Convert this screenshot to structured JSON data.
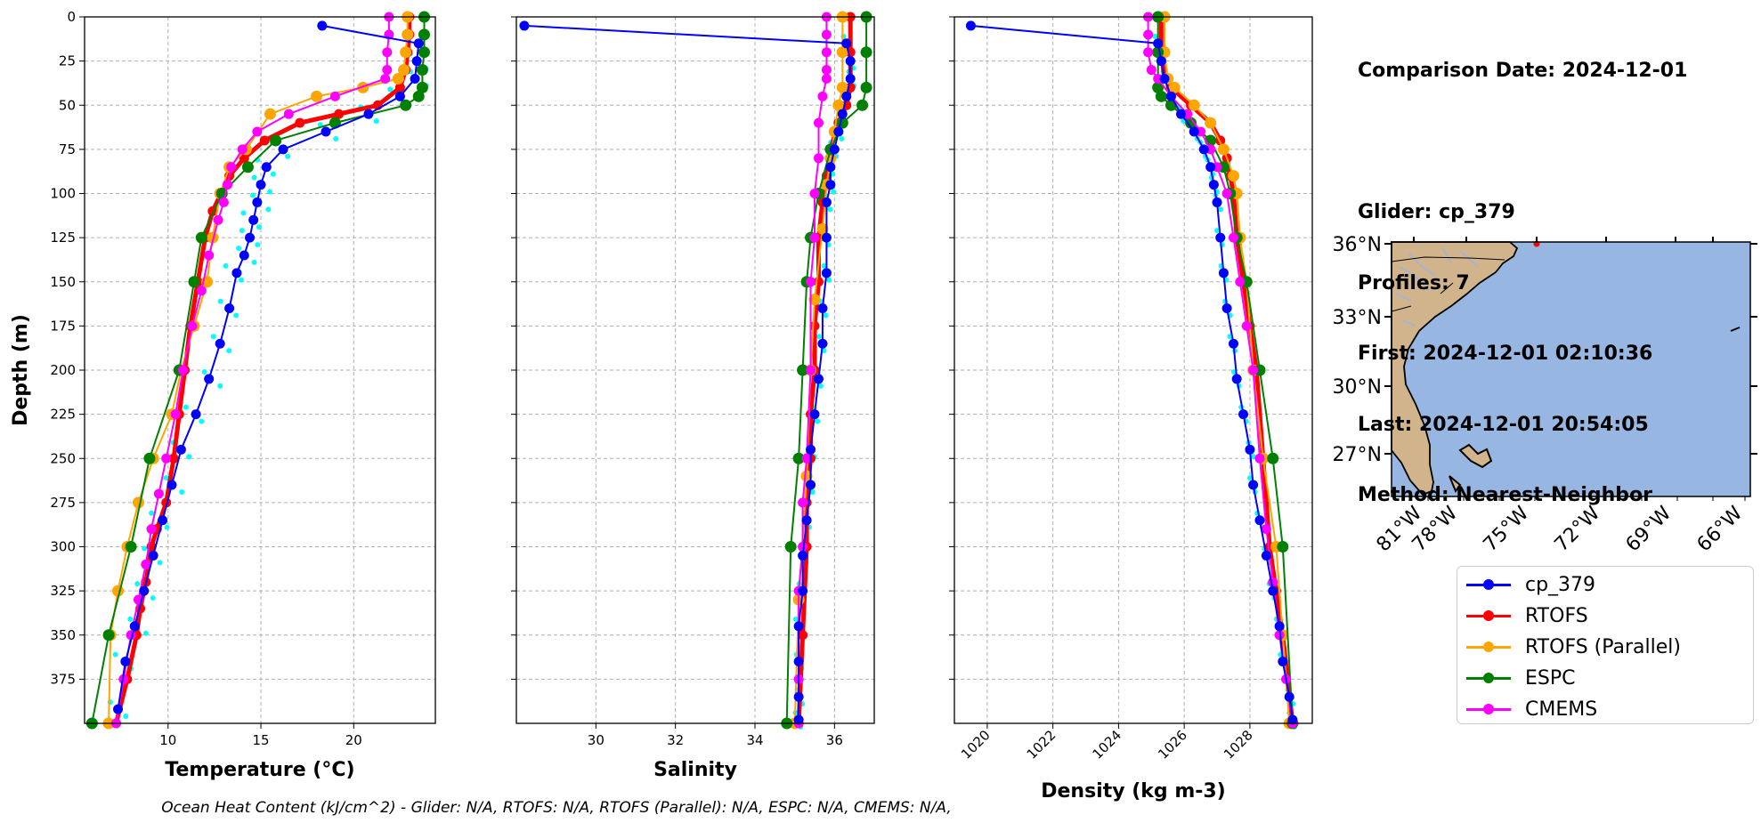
{
  "info": {
    "comparison_date": "Comparison Date: 2024-12-01",
    "glider": "Glider: cp_379",
    "profiles": "Profiles: 7",
    "first": "First: 2024-12-01 02:10:36",
    "last": "Last: 2024-12-01 20:54:05",
    "method": "Method: Nearest-Neighbor"
  },
  "footer": "Ocean Heat Content (kJ/cm^2) - Glider: N/A,  RTOFS: N/A,  RTOFS (Parallel): N/A,  ESPC: N/A,  CMEMS: N/A,",
  "colors": {
    "glider": "#0000ff",
    "rtofs": "#ff0000",
    "rtofs_parallel": "#ffa500",
    "espc": "#008000",
    "cmems": "#ff00ff",
    "glider_points": "#00ffff",
    "ocean": "#97b6e1",
    "land": "#d2b48c"
  },
  "legend": [
    "cp_379",
    "RTOFS",
    "RTOFS (Parallel)",
    "ESPC",
    "CMEMS"
  ],
  "map": {
    "lat_labels": [
      "36°N",
      "33°N",
      "30°N",
      "27°N"
    ],
    "lon_labels": [
      "81°W",
      "78°W",
      "75°W",
      "72°W",
      "69°W",
      "66°W"
    ]
  },
  "chart_data": [
    {
      "type": "line",
      "xlabel": "Temperature (°C)",
      "ylabel": "Depth (m)",
      "xlim": [
        5.5,
        24.4
      ],
      "ylim": [
        400,
        0
      ],
      "x_ticks": [
        10,
        15,
        20
      ],
      "y_ticks": [
        0,
        25,
        50,
        75,
        100,
        125,
        150,
        175,
        200,
        225,
        250,
        275,
        300,
        325,
        350,
        375
      ],
      "grid": true,
      "series": [
        {
          "name": "cp_379",
          "x": [
            18.3,
            23.5,
            23.4,
            23.3,
            22.5,
            20.8,
            18.5,
            16.2,
            15.3,
            15.0,
            14.8,
            14.6,
            14.4,
            14.1,
            13.7,
            13.3,
            12.8,
            12.2,
            11.5,
            10.7,
            10.2,
            9.7,
            9.2,
            8.7,
            8.2,
            7.7,
            7.3
          ],
          "y": [
            5,
            15,
            25,
            35,
            45,
            55,
            65,
            75,
            85,
            95,
            105,
            115,
            125,
            135,
            145,
            165,
            185,
            205,
            225,
            245,
            265,
            285,
            305,
            325,
            345,
            365,
            392
          ]
        },
        {
          "name": "RTOFS",
          "x": [
            23.0,
            23.0,
            22.9,
            22.8,
            22.5,
            21.3,
            19.2,
            17.1,
            15.2,
            14.1,
            13.3,
            12.4,
            12.0,
            11.6,
            11.2,
            10.9,
            10.6,
            10.3,
            9.9,
            9.4,
            9.1,
            8.8,
            8.5,
            8.3,
            7.8,
            7.2
          ],
          "y": [
            0,
            10,
            20,
            30,
            40,
            50,
            55,
            60,
            70,
            80,
            90,
            110,
            125,
            150,
            175,
            200,
            225,
            250,
            275,
            290,
            300,
            320,
            335,
            350,
            375,
            400
          ]
        },
        {
          "name": "RTOFS (Parallel)",
          "x": [
            22.9,
            22.9,
            22.8,
            22.7,
            22.4,
            20.5,
            18.0,
            15.5,
            14.2,
            13.3,
            12.8,
            12.4,
            12.1,
            11.4,
            10.7,
            10.2,
            9.2,
            8.4,
            7.8,
            7.3,
            6.9,
            6.8
          ],
          "y": [
            0,
            10,
            20,
            30,
            35,
            40,
            45,
            55,
            75,
            85,
            100,
            125,
            150,
            175,
            200,
            225,
            250,
            275,
            300,
            325,
            350,
            400
          ]
        },
        {
          "name": "ESPC",
          "x": [
            23.8,
            23.8,
            23.8,
            23.7,
            23.7,
            23.5,
            22.8,
            19.0,
            15.8,
            14.3,
            12.9,
            11.8,
            11.4,
            10.6,
            9.0,
            8.0,
            6.8,
            5.9
          ],
          "y": [
            0,
            10,
            20,
            30,
            40,
            45,
            50,
            60,
            70,
            85,
            100,
            125,
            150,
            200,
            250,
            300,
            350,
            400
          ]
        },
        {
          "name": "CMEMS",
          "x": [
            21.9,
            21.9,
            21.8,
            21.8,
            21.7,
            19.0,
            16.5,
            14.8,
            14.0,
            13.4,
            13.2,
            13.0,
            12.7,
            12.2,
            11.8,
            11.3,
            10.8,
            10.4,
            9.9,
            9.5,
            9.1,
            8.8,
            8.4,
            8.0,
            7.6,
            7.2
          ],
          "y": [
            0,
            10,
            20,
            30,
            35,
            45,
            55,
            65,
            75,
            85,
            95,
            105,
            115,
            135,
            155,
            175,
            200,
            225,
            250,
            270,
            290,
            310,
            330,
            350,
            375,
            400
          ]
        }
      ]
    },
    {
      "type": "line",
      "xlabel": "Salinity",
      "xlim": [
        28.0,
        37.0
      ],
      "ylim": [
        400,
        0
      ],
      "x_ticks": [
        30,
        32,
        34,
        36
      ],
      "grid": true,
      "series": [
        {
          "name": "cp_379",
          "x": [
            28.2,
            36.3,
            36.4,
            36.4,
            36.3,
            36.2,
            36.1,
            36.0,
            35.9,
            35.9,
            35.8,
            35.8,
            35.8,
            35.7,
            35.7,
            35.6,
            35.5,
            35.4,
            35.4,
            35.3,
            35.2,
            35.2,
            35.1,
            35.1,
            35.1,
            35.1
          ],
          "y": [
            5,
            15,
            25,
            35,
            45,
            55,
            65,
            75,
            85,
            95,
            105,
            125,
            145,
            165,
            185,
            205,
            225,
            245,
            265,
            285,
            305,
            325,
            345,
            365,
            385,
            398
          ]
        },
        {
          "name": "RTOFS",
          "x": [
            36.4,
            36.4,
            36.4,
            36.3,
            36.1,
            35.9,
            35.8,
            35.7,
            35.6,
            35.6,
            35.5,
            35.5,
            35.4,
            35.4,
            35.3,
            35.3,
            35.2,
            35.1
          ],
          "y": [
            0,
            20,
            40,
            50,
            60,
            75,
            90,
            105,
            125,
            150,
            175,
            200,
            225,
            250,
            275,
            300,
            350,
            400
          ]
        },
        {
          "name": "RTOFS (Parallel)",
          "x": [
            36.2,
            36.2,
            36.2,
            36.1,
            36.0,
            35.9,
            35.8,
            35.7,
            35.5,
            35.4,
            35.3,
            35.1,
            35.0
          ],
          "y": [
            0,
            20,
            40,
            50,
            65,
            80,
            95,
            120,
            160,
            200,
            260,
            330,
            400
          ]
        },
        {
          "name": "ESPC",
          "x": [
            36.8,
            36.8,
            36.8,
            36.7,
            36.2,
            35.9,
            35.6,
            35.4,
            35.3,
            35.2,
            35.1,
            34.9,
            34.8
          ],
          "y": [
            0,
            20,
            40,
            50,
            60,
            75,
            100,
            125,
            150,
            200,
            250,
            300,
            400
          ]
        },
        {
          "name": "CMEMS",
          "x": [
            35.8,
            35.8,
            35.8,
            35.8,
            35.8,
            35.7,
            35.6,
            35.6,
            35.5,
            35.5,
            35.4,
            35.4,
            35.3,
            35.2,
            35.2,
            35.1,
            35.1,
            35.1
          ],
          "y": [
            0,
            10,
            20,
            30,
            35,
            45,
            60,
            80,
            100,
            125,
            150,
            200,
            250,
            275,
            300,
            325,
            375,
            400
          ]
        }
      ]
    },
    {
      "type": "line",
      "xlabel": "Density (kg m-3)",
      "xlim": [
        1019.0,
        1029.9
      ],
      "ylim": [
        400,
        0
      ],
      "x_ticks": [
        1020,
        1022,
        1024,
        1026,
        1028
      ],
      "grid": true,
      "series": [
        {
          "name": "cp_379",
          "x": [
            1019.5,
            1025.2,
            1025.3,
            1025.4,
            1025.6,
            1025.9,
            1026.3,
            1026.6,
            1026.8,
            1026.9,
            1027.0,
            1027.1,
            1027.2,
            1027.3,
            1027.5,
            1027.6,
            1027.8,
            1028.0,
            1028.1,
            1028.3,
            1028.5,
            1028.7,
            1028.9,
            1029.0,
            1029.2,
            1029.3
          ],
          "y": [
            5,
            15,
            25,
            35,
            45,
            55,
            65,
            75,
            85,
            95,
            105,
            125,
            145,
            165,
            185,
            205,
            225,
            245,
            265,
            285,
            305,
            325,
            345,
            365,
            385,
            398
          ]
        },
        {
          "name": "RTOFS",
          "x": [
            1025.3,
            1025.3,
            1025.4,
            1025.6,
            1026.2,
            1026.8,
            1027.1,
            1027.3,
            1027.4,
            1027.5,
            1027.6,
            1027.8,
            1028.0,
            1028.2,
            1028.4,
            1028.6,
            1028.8,
            1029.0,
            1029.3
          ],
          "y": [
            0,
            20,
            35,
            40,
            50,
            60,
            70,
            80,
            90,
            100,
            125,
            150,
            175,
            200,
            250,
            300,
            325,
            350,
            400
          ]
        },
        {
          "name": "RTOFS (Parallel)",
          "x": [
            1025.4,
            1025.4,
            1025.5,
            1025.7,
            1026.3,
            1026.8,
            1027.2,
            1027.5,
            1027.6,
            1027.7,
            1027.9,
            1028.1,
            1028.4,
            1028.8,
            1029.0,
            1029.2
          ],
          "y": [
            0,
            20,
            35,
            40,
            50,
            60,
            75,
            90,
            100,
            125,
            150,
            200,
            250,
            300,
            350,
            400
          ]
        },
        {
          "name": "ESPC",
          "x": [
            1025.2,
            1025.2,
            1025.2,
            1025.3,
            1025.6,
            1026.2,
            1026.8,
            1027.2,
            1027.4,
            1027.6,
            1027.9,
            1028.3,
            1028.7,
            1029.0,
            1029.3
          ],
          "y": [
            0,
            20,
            40,
            45,
            50,
            60,
            70,
            85,
            100,
            125,
            150,
            200,
            250,
            300,
            400
          ]
        },
        {
          "name": "CMEMS",
          "x": [
            1024.9,
            1024.9,
            1024.9,
            1025.0,
            1025.2,
            1025.6,
            1026.1,
            1026.5,
            1026.8,
            1027.0,
            1027.3,
            1027.5,
            1027.7,
            1027.9,
            1028.1,
            1028.3,
            1028.5,
            1028.7,
            1028.9,
            1029.1,
            1029.3
          ],
          "y": [
            0,
            10,
            20,
            30,
            35,
            45,
            55,
            65,
            75,
            85,
            100,
            125,
            150,
            175,
            200,
            250,
            290,
            320,
            350,
            375,
            400
          ]
        }
      ]
    }
  ]
}
